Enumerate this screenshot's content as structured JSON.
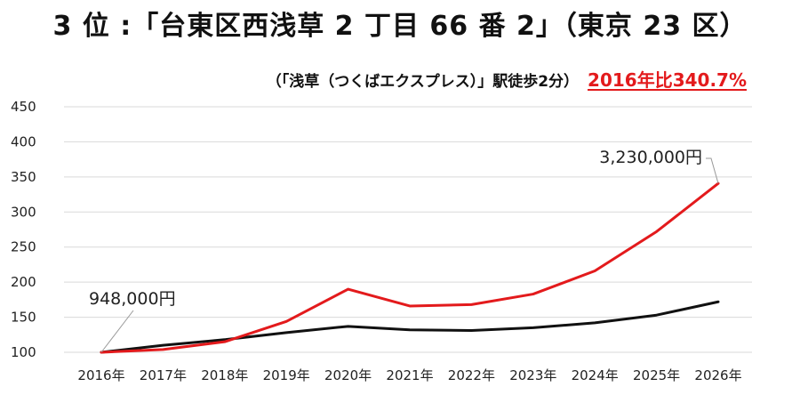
{
  "title": "3 位 :「台東区西浅草 2 丁目 66 番 2」（東京 23 区）",
  "subtitle": "（「浅草（つくばエクスプレス）」駅徒歩2分）",
  "ratio_label": "2016年比340.7%",
  "colors": {
    "red": "#e31a1c",
    "black": "#111111",
    "grid": "#d9d9d9"
  },
  "chart_data": {
    "type": "line",
    "categories": [
      "2016年",
      "2017年",
      "2018年",
      "2019年",
      "2020年",
      "2021年",
      "2022年",
      "2023年",
      "2024年",
      "2025年",
      "2026年"
    ],
    "series": [
      {
        "color": "#e31a1c",
        "values": [
          100,
          104,
          115,
          144,
          190,
          166,
          168,
          183,
          216,
          272,
          340.7
        ]
      },
      {
        "color": "#111111",
        "values": [
          100,
          110,
          118,
          128,
          137,
          132,
          131,
          135,
          142,
          153,
          172
        ]
      }
    ],
    "yticks": [
      100,
      150,
      200,
      250,
      300,
      350,
      400,
      450
    ],
    "ylim": [
      100,
      450
    ],
    "grid": true,
    "annotations": [
      {
        "text": "948,000円",
        "series": 0,
        "index": 0
      },
      {
        "text": "3,230,000円",
        "series": 0,
        "index": 10
      }
    ]
  }
}
